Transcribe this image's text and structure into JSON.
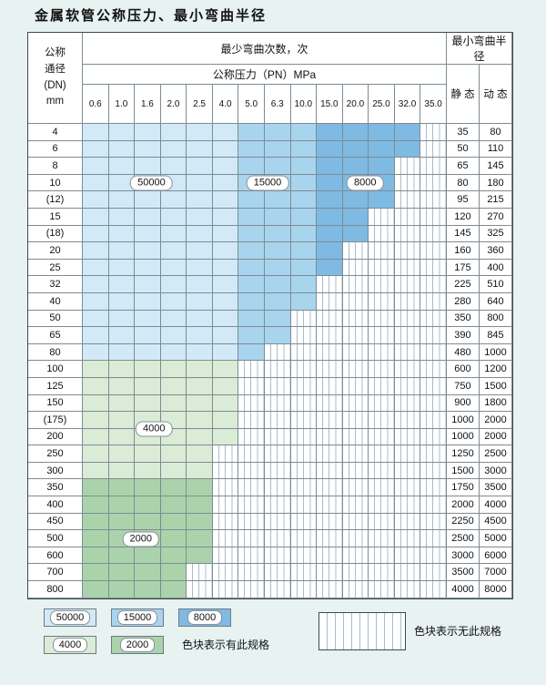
{
  "title": "金属软管公称压力、最小弯曲半径",
  "colors": {
    "c50000": "#d2eaf7",
    "c15000": "#a9d4ee",
    "c8000": "#7fbae2",
    "c4000": "#daecd6",
    "c2000": "#abd3ab",
    "stripe": "#a9bcc9",
    "page_bg": "#e7f2f1",
    "grid_line": "#7d8b94",
    "outer_line": "#3c4a52"
  },
  "header": {
    "dn_lines": [
      "公称",
      "通径",
      "(DN)",
      "mm"
    ],
    "cycles": "最少弯曲次数，次",
    "pressure": "公称压力（PN）MPa",
    "radius": "最小弯曲半径",
    "static": "静 态",
    "dynamic": "动 态"
  },
  "chart_data": {
    "type": "heatmap",
    "title": "金属软管公称压力、最小弯曲半径",
    "x_axis": "公称压力（PN）MPa",
    "y_axis": "公称通径(DN) mm",
    "cell_value_meaning": "最少弯曲次数，次 (none = 无此规格)",
    "radius_columns": [
      "静 态",
      "动 态"
    ],
    "pressure_columns": [
      "0.6",
      "1.0",
      "1.6",
      "2.0",
      "2.5",
      "4.0",
      "5.0",
      "6.3",
      "10.0",
      "15.0",
      "20.0",
      "25.0",
      "32.0",
      "35.0"
    ],
    "cycle_levels": [
      "50000",
      "15000",
      "8000",
      "4000",
      "2000"
    ],
    "rows": [
      {
        "dn": "4",
        "static": "35",
        "dynamic": "80",
        "cells": [
          "50000",
          "50000",
          "50000",
          "50000",
          "50000",
          "50000",
          "15000",
          "15000",
          "15000",
          "8000",
          "8000",
          "8000",
          "8000",
          "none"
        ]
      },
      {
        "dn": "6",
        "static": "50",
        "dynamic": "110",
        "cells": [
          "50000",
          "50000",
          "50000",
          "50000",
          "50000",
          "50000",
          "15000",
          "15000",
          "15000",
          "8000",
          "8000",
          "8000",
          "8000",
          "none"
        ]
      },
      {
        "dn": "8",
        "static": "65",
        "dynamic": "145",
        "cells": [
          "50000",
          "50000",
          "50000",
          "50000",
          "50000",
          "50000",
          "15000",
          "15000",
          "15000",
          "8000",
          "8000",
          "8000",
          "none",
          "none"
        ]
      },
      {
        "dn": "10",
        "static": "80",
        "dynamic": "180",
        "cells": [
          "50000",
          "50000",
          "50000",
          "50000",
          "50000",
          "50000",
          "15000",
          "15000",
          "15000",
          "8000",
          "8000",
          "8000",
          "none",
          "none"
        ]
      },
      {
        "dn": "(12)",
        "static": "95",
        "dynamic": "215",
        "cells": [
          "50000",
          "50000",
          "50000",
          "50000",
          "50000",
          "50000",
          "15000",
          "15000",
          "15000",
          "8000",
          "8000",
          "8000",
          "none",
          "none"
        ]
      },
      {
        "dn": "15",
        "static": "120",
        "dynamic": "270",
        "cells": [
          "50000",
          "50000",
          "50000",
          "50000",
          "50000",
          "50000",
          "15000",
          "15000",
          "15000",
          "8000",
          "8000",
          "none",
          "none",
          "none"
        ]
      },
      {
        "dn": "(18)",
        "static": "145",
        "dynamic": "325",
        "cells": [
          "50000",
          "50000",
          "50000",
          "50000",
          "50000",
          "50000",
          "15000",
          "15000",
          "15000",
          "8000",
          "8000",
          "none",
          "none",
          "none"
        ]
      },
      {
        "dn": "20",
        "static": "160",
        "dynamic": "360",
        "cells": [
          "50000",
          "50000",
          "50000",
          "50000",
          "50000",
          "50000",
          "15000",
          "15000",
          "15000",
          "8000",
          "none",
          "none",
          "none",
          "none"
        ]
      },
      {
        "dn": "25",
        "static": "175",
        "dynamic": "400",
        "cells": [
          "50000",
          "50000",
          "50000",
          "50000",
          "50000",
          "50000",
          "15000",
          "15000",
          "15000",
          "8000",
          "none",
          "none",
          "none",
          "none"
        ]
      },
      {
        "dn": "32",
        "static": "225",
        "dynamic": "510",
        "cells": [
          "50000",
          "50000",
          "50000",
          "50000",
          "50000",
          "50000",
          "15000",
          "15000",
          "15000",
          "none",
          "none",
          "none",
          "none",
          "none"
        ]
      },
      {
        "dn": "40",
        "static": "280",
        "dynamic": "640",
        "cells": [
          "50000",
          "50000",
          "50000",
          "50000",
          "50000",
          "50000",
          "15000",
          "15000",
          "15000",
          "none",
          "none",
          "none",
          "none",
          "none"
        ]
      },
      {
        "dn": "50",
        "static": "350",
        "dynamic": "800",
        "cells": [
          "50000",
          "50000",
          "50000",
          "50000",
          "50000",
          "50000",
          "15000",
          "15000",
          "none",
          "none",
          "none",
          "none",
          "none",
          "none"
        ]
      },
      {
        "dn": "65",
        "static": "390",
        "dynamic": "845",
        "cells": [
          "50000",
          "50000",
          "50000",
          "50000",
          "50000",
          "50000",
          "15000",
          "15000",
          "none",
          "none",
          "none",
          "none",
          "none",
          "none"
        ]
      },
      {
        "dn": "80",
        "static": "480",
        "dynamic": "1000",
        "cells": [
          "50000",
          "50000",
          "50000",
          "50000",
          "50000",
          "50000",
          "15000",
          "none",
          "none",
          "none",
          "none",
          "none",
          "none",
          "none"
        ]
      },
      {
        "dn": "100",
        "static": "600",
        "dynamic": "1200",
        "cells": [
          "4000",
          "4000",
          "4000",
          "4000",
          "4000",
          "4000",
          "none",
          "none",
          "none",
          "none",
          "none",
          "none",
          "none",
          "none"
        ]
      },
      {
        "dn": "125",
        "static": "750",
        "dynamic": "1500",
        "cells": [
          "4000",
          "4000",
          "4000",
          "4000",
          "4000",
          "4000",
          "none",
          "none",
          "none",
          "none",
          "none",
          "none",
          "none",
          "none"
        ]
      },
      {
        "dn": "150",
        "static": "900",
        "dynamic": "1800",
        "cells": [
          "4000",
          "4000",
          "4000",
          "4000",
          "4000",
          "4000",
          "none",
          "none",
          "none",
          "none",
          "none",
          "none",
          "none",
          "none"
        ]
      },
      {
        "dn": "(175)",
        "static": "1000",
        "dynamic": "2000",
        "cells": [
          "4000",
          "4000",
          "4000",
          "4000",
          "4000",
          "4000",
          "none",
          "none",
          "none",
          "none",
          "none",
          "none",
          "none",
          "none"
        ]
      },
      {
        "dn": "200",
        "static": "1000",
        "dynamic": "2000",
        "cells": [
          "4000",
          "4000",
          "4000",
          "4000",
          "4000",
          "4000",
          "none",
          "none",
          "none",
          "none",
          "none",
          "none",
          "none",
          "none"
        ]
      },
      {
        "dn": "250",
        "static": "1250",
        "dynamic": "2500",
        "cells": [
          "4000",
          "4000",
          "4000",
          "4000",
          "4000",
          "none",
          "none",
          "none",
          "none",
          "none",
          "none",
          "none",
          "none",
          "none"
        ]
      },
      {
        "dn": "300",
        "static": "1500",
        "dynamic": "3000",
        "cells": [
          "4000",
          "4000",
          "4000",
          "4000",
          "4000",
          "none",
          "none",
          "none",
          "none",
          "none",
          "none",
          "none",
          "none",
          "none"
        ]
      },
      {
        "dn": "350",
        "static": "1750",
        "dynamic": "3500",
        "cells": [
          "2000",
          "2000",
          "2000",
          "2000",
          "2000",
          "none",
          "none",
          "none",
          "none",
          "none",
          "none",
          "none",
          "none",
          "none"
        ]
      },
      {
        "dn": "400",
        "static": "2000",
        "dynamic": "4000",
        "cells": [
          "2000",
          "2000",
          "2000",
          "2000",
          "2000",
          "none",
          "none",
          "none",
          "none",
          "none",
          "none",
          "none",
          "none",
          "none"
        ]
      },
      {
        "dn": "450",
        "static": "2250",
        "dynamic": "4500",
        "cells": [
          "2000",
          "2000",
          "2000",
          "2000",
          "2000",
          "none",
          "none",
          "none",
          "none",
          "none",
          "none",
          "none",
          "none",
          "none"
        ]
      },
      {
        "dn": "500",
        "static": "2500",
        "dynamic": "5000",
        "cells": [
          "2000",
          "2000",
          "2000",
          "2000",
          "2000",
          "none",
          "none",
          "none",
          "none",
          "none",
          "none",
          "none",
          "none",
          "none"
        ]
      },
      {
        "dn": "600",
        "static": "3000",
        "dynamic": "6000",
        "cells": [
          "2000",
          "2000",
          "2000",
          "2000",
          "2000",
          "none",
          "none",
          "none",
          "none",
          "none",
          "none",
          "none",
          "none",
          "none"
        ]
      },
      {
        "dn": "700",
        "static": "3500",
        "dynamic": "7000",
        "cells": [
          "2000",
          "2000",
          "2000",
          "2000",
          "none",
          "none",
          "none",
          "none",
          "none",
          "none",
          "none",
          "none",
          "none",
          "none"
        ]
      },
      {
        "dn": "800",
        "static": "4000",
        "dynamic": "8000",
        "cells": [
          "2000",
          "2000",
          "2000",
          "2000",
          "none",
          "none",
          "none",
          "none",
          "none",
          "none",
          "none",
          "none",
          "none",
          "none"
        ]
      }
    ],
    "grid_labels": [
      {
        "text": "50000",
        "col": 2.6,
        "row": 3.5
      },
      {
        "text": "15000",
        "col": 7.0,
        "row": 3.5
      },
      {
        "text": "8000",
        "col": 10.7,
        "row": 3.5
      },
      {
        "text": "4000",
        "col": 2.7,
        "row": 18.0
      },
      {
        "text": "2000",
        "col": 2.2,
        "row": 24.5
      }
    ]
  },
  "legend": {
    "row1": [
      {
        "label": "50000",
        "band": "50000"
      },
      {
        "label": "15000",
        "band": "15000"
      },
      {
        "label": "8000",
        "band": "8000"
      }
    ],
    "row2": [
      {
        "label": "4000",
        "band": "4000"
      },
      {
        "label": "2000",
        "band": "2000"
      }
    ],
    "has_note": "色块表示有此规格",
    "none_note": "色块表示无此规格"
  }
}
